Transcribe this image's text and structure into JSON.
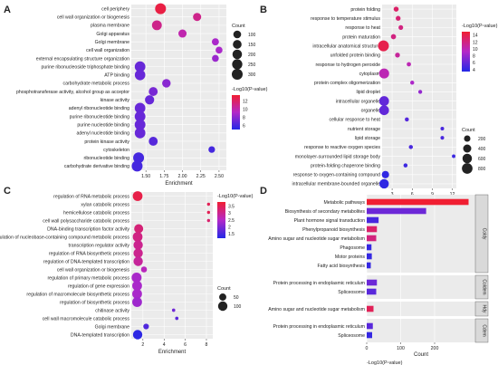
{
  "panels": {
    "A": {
      "letter": "A"
    },
    "B": {
      "letter": "B"
    },
    "C": {
      "letter": "C"
    },
    "D": {
      "letter": "D"
    }
  },
  "chart_data": [
    {
      "id": "A",
      "type": "scatter",
      "title": "",
      "xlabel": "Enrichment",
      "ylabel": "",
      "xlim": [
        1.3,
        2.6
      ],
      "xticks": [
        1.5,
        1.75,
        2.0,
        2.25,
        2.5
      ],
      "xtick_labels": [
        "1.50",
        "1.75",
        "2.00",
        "2.25",
        "2.50"
      ],
      "grid": true,
      "legend_placement": "right",
      "size_legend": {
        "title": "Count",
        "values": [
          100,
          150,
          200,
          250,
          300
        ]
      },
      "color_legend": {
        "title": "-Log10(P-value)",
        "ticks": [
          6,
          8,
          10,
          12
        ],
        "range": [
          5,
          13.5
        ]
      },
      "terms": [
        {
          "label": "cell periphery",
          "x": 1.7,
          "count": 300,
          "logp": 13
        },
        {
          "label": "cell wall organization or biogenesis",
          "x": 2.2,
          "count": 120,
          "logp": 11
        },
        {
          "label": "plasma membrane",
          "x": 1.65,
          "count": 220,
          "logp": 11
        },
        {
          "label": "Golgi apparatus",
          "x": 2.0,
          "count": 120,
          "logp": 10
        },
        {
          "label": "Golgi membrane",
          "x": 2.45,
          "count": 70,
          "logp": 9
        },
        {
          "label": "cell wall organization",
          "x": 2.5,
          "count": 60,
          "logp": 9
        },
        {
          "label": "external encapsulating structure organization",
          "x": 2.45,
          "count": 60,
          "logp": 8.5
        },
        {
          "label": "purine ribonucleoside triphosphate binding",
          "x": 1.42,
          "count": 280,
          "logp": 7
        },
        {
          "label": "ATP binding",
          "x": 1.42,
          "count": 270,
          "logp": 7
        },
        {
          "label": "carbohydrate metabolic process",
          "x": 1.78,
          "count": 140,
          "logp": 8
        },
        {
          "label": "phosphotransferase activity, alcohol group as acceptor",
          "x": 1.6,
          "count": 160,
          "logp": 7.5
        },
        {
          "label": "kinase activity",
          "x": 1.55,
          "count": 180,
          "logp": 7
        },
        {
          "label": "adenyl ribonucleotide binding",
          "x": 1.42,
          "count": 280,
          "logp": 7
        },
        {
          "label": "purine ribonucleotide binding",
          "x": 1.42,
          "count": 290,
          "logp": 7
        },
        {
          "label": "purine nucleotide binding",
          "x": 1.42,
          "count": 290,
          "logp": 7
        },
        {
          "label": "adenyl nucleotide binding",
          "x": 1.42,
          "count": 280,
          "logp": 7
        },
        {
          "label": "protein kinase activity",
          "x": 1.6,
          "count": 160,
          "logp": 6.5
        },
        {
          "label": "cytoskeleton",
          "x": 2.4,
          "count": 50,
          "logp": 6
        },
        {
          "label": "ribonucleotide binding",
          "x": 1.4,
          "count": 300,
          "logp": 6
        },
        {
          "label": "carbohydrate derivative binding",
          "x": 1.38,
          "count": 300,
          "logp": 6
        }
      ]
    },
    {
      "id": "B",
      "type": "scatter",
      "title": "",
      "xlabel": "Enrichment",
      "ylabel": "",
      "xlim": [
        1.5,
        12.6
      ],
      "xticks": [
        3,
        6,
        9,
        12
      ],
      "xtick_labels": [
        "3",
        "6",
        "9",
        "12"
      ],
      "grid": true,
      "legend_placement": "right",
      "size_legend": {
        "title": "Count",
        "values": [
          200,
          400,
          600,
          800
        ]
      },
      "color_legend": {
        "title": "-Log10(P-value)",
        "ticks": [
          4,
          6,
          8,
          10,
          12,
          14
        ],
        "range": [
          3.5,
          15
        ]
      },
      "terms": [
        {
          "label": "protein folding",
          "x": 3.6,
          "count": 90,
          "logp": 13
        },
        {
          "label": "response to temperature stimulus",
          "x": 3.9,
          "count": 80,
          "logp": 12.5
        },
        {
          "label": "response to heat",
          "x": 4.3,
          "count": 70,
          "logp": 12
        },
        {
          "label": "protein maturation",
          "x": 3.2,
          "count": 100,
          "logp": 12
        },
        {
          "label": "intracellular anatomical structure",
          "x": 1.7,
          "count": 850,
          "logp": 14
        },
        {
          "label": "unfolded protein binding",
          "x": 3.8,
          "count": 80,
          "logp": 11
        },
        {
          "label": "response to hydrogen peroxide",
          "x": 5.5,
          "count": 50,
          "logp": 10
        },
        {
          "label": "cytoplasm",
          "x": 1.8,
          "count": 700,
          "logp": 10
        },
        {
          "label": "protein complex oligomerization",
          "x": 6.0,
          "count": 40,
          "logp": 9
        },
        {
          "label": "lipid droplet",
          "x": 7.2,
          "count": 35,
          "logp": 8
        },
        {
          "label": "intracellular organelle",
          "x": 1.8,
          "count": 650,
          "logp": 6
        },
        {
          "label": "organelle",
          "x": 1.8,
          "count": 650,
          "logp": 6
        },
        {
          "label": "cellular response to heat",
          "x": 5.2,
          "count": 40,
          "logp": 5.5
        },
        {
          "label": "nutrient storage",
          "x": 10.5,
          "count": 25,
          "logp": 5
        },
        {
          "label": "lipid storage",
          "x": 10.5,
          "count": 25,
          "logp": 5
        },
        {
          "label": "response to reactive oxygen species",
          "x": 5.8,
          "count": 40,
          "logp": 5
        },
        {
          "label": "monolayer-surrounded lipid storage body",
          "x": 12.2,
          "count": 20,
          "logp": 4.5
        },
        {
          "label": "protein-folding chaperone binding",
          "x": 5.0,
          "count": 40,
          "logp": 4.5
        },
        {
          "label": "response to oxygen-containing compound",
          "x": 2.0,
          "count": 300,
          "logp": 4
        },
        {
          "label": "intracellular membrane-bounded organelle",
          "x": 1.8,
          "count": 600,
          "logp": 4
        }
      ]
    },
    {
      "id": "C",
      "type": "scatter",
      "title": "",
      "xlabel": "Enrichment",
      "ylabel": "",
      "xlim": [
        0.9,
        8.6
      ],
      "xticks": [
        2,
        4,
        6,
        8
      ],
      "xtick_labels": [
        "2",
        "4",
        "6",
        "8"
      ],
      "grid": true,
      "legend_placement": "right",
      "size_legend": {
        "title": "Count",
        "values": [
          50,
          100
        ]
      },
      "color_legend": {
        "title": "-Log10(P-value)",
        "ticks": [
          1.5,
          2.0,
          2.5,
          3.0,
          3.5
        ],
        "range": [
          1.2,
          3.8
        ]
      },
      "terms": [
        {
          "label": "regulation of RNA metabolic process",
          "x": 1.5,
          "count": 110,
          "logp": 3.6
        },
        {
          "label": "xylan catabolic process",
          "x": 8.2,
          "count": 3,
          "logp": 3.5
        },
        {
          "label": "hemicellulose catabolic process",
          "x": 8.2,
          "count": 3,
          "logp": 3.5
        },
        {
          "label": "cell wall polysaccharide catabolic process",
          "x": 8.2,
          "count": 3,
          "logp": 3.3
        },
        {
          "label": "DNA-binding transcription factor activity",
          "x": 1.6,
          "count": 90,
          "logp": 3.2
        },
        {
          "label": "regulation of nucleobase-containing compound metabolic process",
          "x": 1.5,
          "count": 110,
          "logp": 3.1
        },
        {
          "label": "transcription regulator activity",
          "x": 1.55,
          "count": 100,
          "logp": 3.0
        },
        {
          "label": "regulation of RNA biosynthetic process",
          "x": 1.55,
          "count": 100,
          "logp": 3.0
        },
        {
          "label": "regulation of DNA-templated transcription",
          "x": 1.55,
          "count": 100,
          "logp": 2.9
        },
        {
          "label": "cell wall organization or biogenesis",
          "x": 2.1,
          "count": 30,
          "logp": 2.6
        },
        {
          "label": "regulation of primary metabolic process",
          "x": 1.4,
          "count": 115,
          "logp": 2.4
        },
        {
          "label": "regulation of gene expression",
          "x": 1.45,
          "count": 110,
          "logp": 2.4
        },
        {
          "label": "regulation of macromolecule biosynthetic process",
          "x": 1.45,
          "count": 110,
          "logp": 2.4
        },
        {
          "label": "regulation of biosynthetic process",
          "x": 1.45,
          "count": 110,
          "logp": 2.3
        },
        {
          "label": "chitinase activity",
          "x": 4.9,
          "count": 4,
          "logp": 1.9
        },
        {
          "label": "cell wall macromolecule catabolic process",
          "x": 5.2,
          "count": 4,
          "logp": 1.7
        },
        {
          "label": "Golgi membrane",
          "x": 2.3,
          "count": 25,
          "logp": 1.6
        },
        {
          "label": "DNA-templated transcription",
          "x": 1.5,
          "count": 100,
          "logp": 1.3
        }
      ]
    },
    {
      "id": "D",
      "type": "bar",
      "orientation": "horizontal",
      "title": "",
      "xlabel": "Count",
      "ylabel": "",
      "xlim": [
        0,
        320
      ],
      "xticks": [
        0,
        100,
        200
      ],
      "xtick_labels": [
        "0",
        "100",
        "200"
      ],
      "grid": true,
      "legend_placement": "bottom",
      "color_legend": {
        "title": "-Log10(P-value)",
        "ticks": [
          1.5,
          2.0,
          2.5
        ],
        "range": [
          1.2,
          2.8
        ]
      },
      "facets": [
        {
          "label": "Coldy",
          "bars": [
            {
              "label": "Metabolic pathways",
              "value": 300,
              "logp": 2.8
            },
            {
              "label": "Biosynthesis of secondary metabolites",
              "value": 175,
              "logp": 1.6
            },
            {
              "label": "Plant hormone signal transduction",
              "value": 35,
              "logp": 1.4
            },
            {
              "label": "Phenylpropanoid biosynthesis",
              "value": 30,
              "logp": 2.5
            },
            {
              "label": "Amino sugar and nucleotide sugar metabolism",
              "value": 28,
              "logp": 2.4
            },
            {
              "label": "Phagosome",
              "value": 14,
              "logp": 1.3
            },
            {
              "label": "Motor proteins",
              "value": 15,
              "logp": 1.3
            },
            {
              "label": "Fatty acid biosynthesis",
              "value": 12,
              "logp": 1.3
            }
          ]
        },
        {
          "label": "Coldem",
          "bars": [
            {
              "label": "Protein processing in endoplasmic reticulum",
              "value": 30,
              "logp": 1.6
            },
            {
              "label": "Spliceosome",
              "value": 28,
              "logp": 1.5
            }
          ]
        },
        {
          "label": "Hdy",
          "bars": [
            {
              "label": "Amino sugar and nucleotide sugar metabolism",
              "value": 20,
              "logp": 2.6
            }
          ]
        },
        {
          "label": "Cdem",
          "bars": [
            {
              "label": "Protein processing in endoplasmic reticulum",
              "value": 18,
              "logp": 1.5
            },
            {
              "label": "Spliceosome",
              "value": 16,
              "logp": 1.3
            }
          ]
        }
      ]
    }
  ]
}
